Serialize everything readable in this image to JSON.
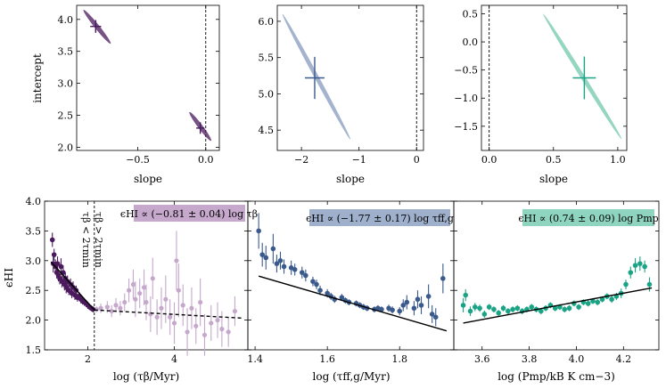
{
  "colors": {
    "c1": "#4a1a5c",
    "c1_light": "#c5a8cc",
    "c2": "#3b5a8c",
    "c2_light": "#9fb0cc",
    "c3": "#1aa385",
    "c3_light": "#8fd4bf"
  },
  "chart_data": [
    {
      "type": "scatter",
      "panel": "top-1",
      "xlabel": "slope",
      "ylabel": "intercept",
      "xlim": [
        -0.95,
        0.1
      ],
      "ylim": [
        1.95,
        4.22
      ],
      "xticks": [
        "−0.5",
        "0.0"
      ],
      "xtick_values": [
        -0.5,
        0.0
      ],
      "yticks": [
        "2.0",
        "2.5",
        "3.0",
        "3.5",
        "4.0"
      ],
      "ytick_values": [
        2.0,
        2.5,
        3.0,
        3.5,
        4.0
      ],
      "vline": 0.0,
      "ellipses": [
        {
          "x1": -0.9,
          "y1": 4.15,
          "x2": -0.7,
          "y2": 3.62
        },
        {
          "x1": -0.12,
          "y1": 2.55,
          "x2": 0.04,
          "y2": 2.1
        }
      ],
      "points": [
        {
          "x": -0.81,
          "y": 3.89,
          "xerr": 0.04,
          "yerr": 0.1
        },
        {
          "x": -0.04,
          "y": 2.3,
          "xerr": 0.03,
          "yerr": 0.09
        }
      ]
    },
    {
      "type": "scatter",
      "panel": "top-2",
      "xlabel": "slope",
      "ylabel": "",
      "xlim": [
        -2.42,
        0.12
      ],
      "ylim": [
        4.22,
        6.22
      ],
      "xticks": [
        "−2",
        "−1",
        "0"
      ],
      "xtick_values": [
        -2,
        -1,
        0
      ],
      "yticks": [
        "4.5",
        "5.0",
        "5.5",
        "6.0"
      ],
      "ytick_values": [
        4.5,
        5.0,
        5.5,
        6.0
      ],
      "vline": 0.0,
      "ellipses": [
        {
          "x1": -2.33,
          "y1": 6.1,
          "x2": -1.15,
          "y2": 4.37
        }
      ],
      "points": [
        {
          "x": -1.77,
          "y": 5.22,
          "xerr": 0.17,
          "yerr": 0.29
        }
      ]
    },
    {
      "type": "scatter",
      "panel": "top-3",
      "xlabel": "slope",
      "ylabel": "",
      "xlim": [
        -0.06,
        1.07
      ],
      "ylim": [
        -1.93,
        0.65
      ],
      "xticks": [
        "0.0",
        "0.5",
        "1.0"
      ],
      "xtick_values": [
        0.0,
        0.5,
        1.0
      ],
      "yticks": [
        "−1.5",
        "−1.0",
        "−0.5",
        "0.0",
        "0.5"
      ],
      "ytick_values": [
        -1.5,
        -1.0,
        -0.5,
        0.0,
        0.5
      ],
      "vline": 0.0,
      "ellipses": [
        {
          "x1": 0.42,
          "y1": 0.5,
          "x2": 1.03,
          "y2": -1.73
        }
      ],
      "points": [
        {
          "x": 0.74,
          "y": -0.64,
          "xerr": 0.09,
          "yerr": 0.38
        }
      ]
    },
    {
      "type": "scatter",
      "panel": "bottom-1",
      "xlabel": "log (τβ/Myr)",
      "ylabel": "ϵHI",
      "xlim": [
        1.0,
        5.7
      ],
      "ylim": [
        1.5,
        4.0
      ],
      "xticks": [
        "2",
        "4"
      ],
      "xtick_values": [
        2,
        4
      ],
      "yticks": [
        "1.5",
        "2.0",
        "2.5",
        "3.0",
        "3.5",
        "4.0"
      ],
      "ytick_values": [
        1.5,
        2.0,
        2.5,
        3.0,
        3.5,
        4.0
      ],
      "vline": 2.15,
      "label": "ϵHI ∝ (−0.81 ± 0.04) log τβ",
      "annotation_left": "τβ < 2τmin",
      "annotation_right": "τβ > 2τmin",
      "fit_solid": {
        "x1": 1.15,
        "x2": 2.15,
        "slope": -0.81,
        "ref_x": 2.15,
        "ref_y": 2.17
      },
      "fit_dashed": {
        "x1": 2.15,
        "x2": 5.6,
        "slope": -0.04,
        "ref_x": 2.15,
        "ref_y": 2.17
      },
      "dark_points": {
        "x": [
          1.18,
          1.2,
          1.22,
          1.25,
          1.28,
          1.3,
          1.32,
          1.35,
          1.38,
          1.4,
          1.43,
          1.46,
          1.48,
          1.5,
          1.53,
          1.56,
          1.6,
          1.63,
          1.66,
          1.7,
          1.73,
          1.76,
          1.8,
          1.84,
          1.88,
          1.92,
          1.96,
          2.0,
          2.04,
          2.08,
          2.12
        ],
        "y": [
          3.35,
          2.95,
          3.1,
          2.9,
          2.8,
          2.95,
          2.75,
          2.7,
          2.9,
          2.65,
          2.8,
          2.6,
          2.7,
          2.55,
          2.65,
          2.5,
          2.6,
          2.45,
          2.55,
          2.42,
          2.5,
          2.38,
          2.4,
          2.35,
          2.32,
          2.3,
          2.28,
          2.25,
          2.22,
          2.2,
          2.18
        ],
        "err": [
          0.12,
          0.15,
          0.1,
          0.12,
          0.1,
          0.12,
          0.1,
          0.1,
          0.14,
          0.1,
          0.12,
          0.1,
          0.1,
          0.1,
          0.1,
          0.08,
          0.1,
          0.08,
          0.1,
          0.08,
          0.08,
          0.07,
          0.07,
          0.07,
          0.06,
          0.06,
          0.06,
          0.06,
          0.05,
          0.05,
          0.05
        ]
      },
      "light_points": {
        "x": [
          2.2,
          2.3,
          2.45,
          2.55,
          2.65,
          2.75,
          2.85,
          2.95,
          3.05,
          3.1,
          3.2,
          3.3,
          3.35,
          3.45,
          3.5,
          3.6,
          3.7,
          3.8,
          3.9,
          4.0,
          4.05,
          4.1,
          4.2,
          4.3,
          4.4,
          4.5,
          4.6,
          4.7,
          4.85,
          5.0,
          5.1,
          5.25,
          5.4
        ],
        "y": [
          2.18,
          2.2,
          2.22,
          2.15,
          2.25,
          2.2,
          2.3,
          2.5,
          2.6,
          2.35,
          2.45,
          2.55,
          2.3,
          2.1,
          2.7,
          2.05,
          2.2,
          2.35,
          2.05,
          1.95,
          3.0,
          2.5,
          2.25,
          1.8,
          2.2,
          1.9,
          2.3,
          1.75,
          1.95,
          2.0,
          1.85,
          1.8,
          2.15
        ],
        "err": [
          0.05,
          0.08,
          0.1,
          0.1,
          0.12,
          0.12,
          0.15,
          0.2,
          0.25,
          0.3,
          0.25,
          0.3,
          0.3,
          0.3,
          0.35,
          0.3,
          0.35,
          0.4,
          0.3,
          0.35,
          0.5,
          0.45,
          0.35,
          0.4,
          0.35,
          0.3,
          0.4,
          0.35,
          0.3,
          0.3,
          0.3,
          0.25,
          0.25
        ]
      }
    },
    {
      "type": "scatter",
      "panel": "bottom-2",
      "xlabel": "log (τff,g/Myr)",
      "ylabel": "",
      "xlim": [
        1.38,
        1.95
      ],
      "ylim": [
        1.5,
        4.0
      ],
      "xticks": [
        "1.4",
        "1.6",
        "1.8"
      ],
      "xtick_values": [
        1.4,
        1.6,
        1.8
      ],
      "label": "ϵHI ∝ (−1.77 ± 0.17) log τff,g",
      "fit_solid": {
        "x1": 1.41,
        "x2": 1.93,
        "slope": -1.77,
        "ref_x": 1.41,
        "ref_y": 2.74
      },
      "points": {
        "x": [
          1.41,
          1.42,
          1.43,
          1.45,
          1.46,
          1.47,
          1.48,
          1.5,
          1.51,
          1.53,
          1.54,
          1.56,
          1.57,
          1.58,
          1.6,
          1.61,
          1.62,
          1.64,
          1.65,
          1.66,
          1.68,
          1.69,
          1.7,
          1.71,
          1.73,
          1.74,
          1.75,
          1.77,
          1.78,
          1.8,
          1.81,
          1.82,
          1.84,
          1.85,
          1.86,
          1.88,
          1.89,
          1.9,
          1.92
        ],
        "y": [
          3.5,
          3.1,
          3.05,
          3.2,
          2.95,
          3.0,
          2.9,
          2.88,
          2.85,
          2.8,
          2.75,
          2.65,
          2.6,
          2.5,
          2.45,
          2.4,
          2.35,
          2.38,
          2.33,
          2.3,
          2.28,
          2.25,
          2.22,
          2.2,
          2.18,
          2.2,
          2.18,
          2.2,
          2.17,
          2.15,
          2.25,
          2.3,
          2.2,
          2.35,
          2.25,
          2.4,
          2.1,
          2.05,
          2.7
        ],
        "err": [
          0.3,
          0.2,
          0.2,
          0.25,
          0.15,
          0.15,
          0.12,
          0.12,
          0.1,
          0.1,
          0.1,
          0.08,
          0.08,
          0.08,
          0.07,
          0.06,
          0.06,
          0.06,
          0.05,
          0.05,
          0.05,
          0.05,
          0.05,
          0.05,
          0.05,
          0.05,
          0.05,
          0.06,
          0.06,
          0.07,
          0.1,
          0.12,
          0.12,
          0.15,
          0.15,
          0.2,
          0.15,
          0.15,
          0.25
        ]
      }
    },
    {
      "type": "scatter",
      "panel": "bottom-3",
      "xlabel": "log (Pmp/kB K cm−3)",
      "ylabel": "",
      "xlim": [
        3.48,
        4.35
      ],
      "ylim": [
        1.5,
        4.0
      ],
      "xticks": [
        "3.6",
        "3.8",
        "4.0",
        "4.2"
      ],
      "xtick_values": [
        3.6,
        3.8,
        4.0,
        4.2
      ],
      "label": "ϵHI ∝ (0.74 ± 0.09) log Pmp",
      "fit_solid": {
        "x1": 3.52,
        "x2": 4.32,
        "slope": 0.74,
        "ref_x": 3.52,
        "ref_y": 1.95
      },
      "points": {
        "x": [
          3.52,
          3.53,
          3.55,
          3.57,
          3.59,
          3.61,
          3.63,
          3.65,
          3.67,
          3.69,
          3.71,
          3.73,
          3.75,
          3.77,
          3.79,
          3.81,
          3.83,
          3.85,
          3.87,
          3.89,
          3.91,
          3.93,
          3.95,
          3.97,
          3.99,
          4.01,
          4.03,
          4.05,
          4.07,
          4.09,
          4.11,
          4.13,
          4.15,
          4.17,
          4.19,
          4.21,
          4.23,
          4.25,
          4.27,
          4.29,
          4.31
        ],
        "y": [
          2.25,
          2.42,
          2.15,
          2.22,
          2.2,
          2.1,
          2.22,
          2.18,
          2.12,
          2.2,
          2.15,
          2.18,
          2.2,
          2.15,
          2.18,
          2.22,
          2.18,
          2.15,
          2.2,
          2.25,
          2.2,
          2.22,
          2.18,
          2.2,
          2.28,
          2.22,
          2.3,
          2.28,
          2.32,
          2.3,
          2.35,
          2.4,
          2.35,
          2.4,
          2.45,
          2.6,
          2.8,
          2.92,
          2.95,
          2.9,
          2.6
        ],
        "err": [
          0.12,
          0.1,
          0.08,
          0.07,
          0.06,
          0.06,
          0.05,
          0.05,
          0.05,
          0.05,
          0.05,
          0.05,
          0.05,
          0.05,
          0.05,
          0.05,
          0.05,
          0.05,
          0.05,
          0.05,
          0.05,
          0.05,
          0.05,
          0.05,
          0.05,
          0.05,
          0.05,
          0.05,
          0.05,
          0.05,
          0.05,
          0.05,
          0.06,
          0.06,
          0.08,
          0.08,
          0.1,
          0.12,
          0.12,
          0.1,
          0.12
        ]
      }
    }
  ]
}
